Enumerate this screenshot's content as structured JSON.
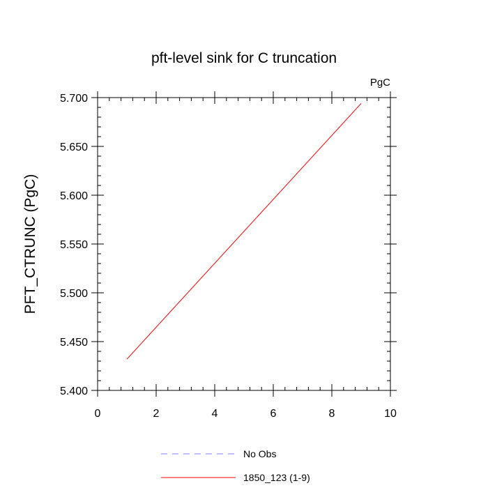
{
  "chart_data": {
    "type": "line",
    "title": "pft-level sink for C truncation",
    "units_label": "PgC",
    "xlabel": "",
    "ylabel": "PFT_CTRUNC  (PgC)",
    "xlim": [
      0,
      10
    ],
    "ylim": [
      5.4,
      5.7
    ],
    "x_ticks": [
      0,
      2,
      4,
      6,
      8,
      10
    ],
    "x_tick_labels": [
      "0",
      "2",
      "4",
      "6",
      "8",
      "10"
    ],
    "y_ticks": [
      5.4,
      5.45,
      5.5,
      5.55,
      5.6,
      5.65,
      5.7
    ],
    "y_tick_labels": [
      "5.400",
      "5.450",
      "5.500",
      "5.550",
      "5.600",
      "5.650",
      "5.700"
    ],
    "grid": false,
    "legend_position": "bottom",
    "series": [
      {
        "name": "1850_123 (1-9)",
        "color": "#ff0000",
        "dash": "solid",
        "x": [
          1,
          9
        ],
        "y": [
          5.432,
          5.694
        ]
      }
    ],
    "legend": [
      {
        "label": "No Obs",
        "color": "#8080ff",
        "dash": "dashed"
      },
      {
        "label": "1850_123 (1-9)",
        "color": "#ff0000",
        "dash": "solid"
      }
    ]
  }
}
